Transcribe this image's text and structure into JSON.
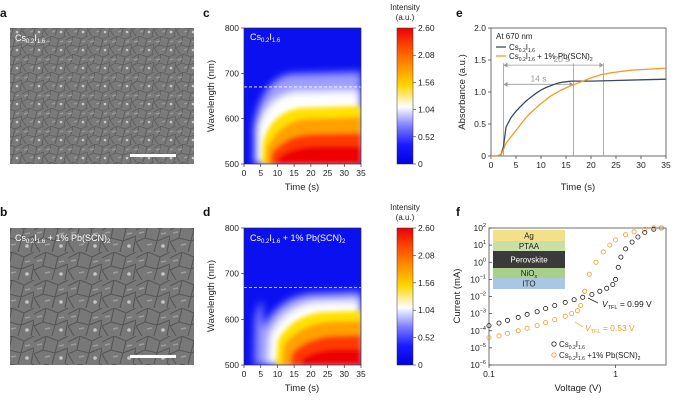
{
  "panel_labels": {
    "a": "a",
    "b": "b",
    "c": "c",
    "d": "d",
    "e": "e",
    "f": "f"
  },
  "sem_a": {
    "label_base": "Cs",
    "label_sub": "0.2",
    "label_mid": "I",
    "label_sub2": "1.6",
    "label_tail": ""
  },
  "sem_b": {
    "label_base": "Cs",
    "label_sub": "0.2",
    "label_mid": "I",
    "label_sub2": "1.6",
    "label_tail": " + 1% Pb(SCN)",
    "label_sub3": "2"
  },
  "colorbar": {
    "title1": "Intensity",
    "title2": "(a.u.)",
    "ticks": [
      "2.60",
      "2.08",
      "1.56",
      "1.04",
      "0.52",
      "0"
    ],
    "colors": [
      "#e8000b",
      "#ff4a00",
      "#ff9a00",
      "#ffd500",
      "#ffffff",
      "#7e7eff",
      "#1a1aff",
      "#0000e0"
    ]
  },
  "chart_data": [
    {
      "type": "heatmap",
      "panel": "c",
      "title_base": "Cs",
      "title_sub": "0.2",
      "title_mid": "I",
      "title_sub2": "1.6",
      "xlabel": "Time (s)",
      "ylabel": "Wavelength (nm)",
      "xlim": [
        0,
        35
      ],
      "ylim": [
        500,
        800
      ],
      "xticks": [
        "0",
        "5",
        "10",
        "15",
        "20",
        "25",
        "30",
        "35"
      ],
      "yticks": [
        "800",
        "700",
        "600",
        "500"
      ],
      "dashed_line_y": 670
    },
    {
      "type": "heatmap",
      "panel": "d",
      "title_base": "Cs",
      "title_sub": "0.2",
      "title_mid": "I",
      "title_sub2": "1.6",
      "title_tail": " + 1% Pb(SCN)",
      "title_sub3": "2",
      "xlabel": "Time (s)",
      "ylabel": "Wavelength (nm)",
      "xlim": [
        0,
        35
      ],
      "ylim": [
        500,
        800
      ],
      "xticks": [
        "0",
        "5",
        "10",
        "15",
        "20",
        "25",
        "30",
        "35"
      ],
      "yticks": [
        "800",
        "700",
        "600",
        "500"
      ],
      "dashed_line_y": 670
    },
    {
      "type": "line",
      "panel": "e",
      "annotation_title": "At 670 nm",
      "xlabel": "Time (s)",
      "ylabel": "Absorbance (a.u.)",
      "xlim": [
        0,
        35
      ],
      "ylim": [
        0,
        2.0
      ],
      "xticks": [
        "0",
        "5",
        "10",
        "15",
        "20",
        "25",
        "30",
        "35"
      ],
      "yticks": [
        "2.0",
        "1.5",
        "1.0",
        "0.5",
        "0"
      ],
      "interval_14": "14 s",
      "interval_20": "20 s",
      "series": [
        {
          "name_base": "Cs",
          "name_sub": "0.2",
          "name_mid": "I",
          "name_sub2": "1.6",
          "color": "#3b4a5c",
          "x": [
            0,
            1,
            2,
            2.5,
            3,
            4,
            5,
            6,
            7,
            8,
            9,
            10,
            11,
            12,
            13,
            14,
            15,
            16,
            17,
            20,
            25,
            30,
            35
          ],
          "y": [
            0.0,
            0.0,
            0.02,
            0.15,
            0.45,
            0.6,
            0.7,
            0.78,
            0.86,
            0.92,
            0.98,
            1.03,
            1.07,
            1.1,
            1.13,
            1.15,
            1.16,
            1.17,
            1.17,
            1.17,
            1.18,
            1.19,
            1.2
          ]
        },
        {
          "name_base": "Cs",
          "name_sub": "0.2",
          "name_mid": "I",
          "name_sub2": "1.6",
          "name_tail": " + 1% Pb(SCN)",
          "name_sub3": "2",
          "color": "#f39a2a",
          "x": [
            0,
            1,
            2,
            2.5,
            3,
            4,
            5,
            6,
            7,
            8,
            10,
            12,
            14,
            16,
            18,
            20,
            22,
            24,
            26,
            28,
            30,
            32,
            35
          ],
          "y": [
            0.0,
            0.0,
            0.02,
            0.1,
            0.2,
            0.3,
            0.4,
            0.5,
            0.6,
            0.68,
            0.82,
            0.94,
            1.03,
            1.1,
            1.16,
            1.22,
            1.27,
            1.3,
            1.32,
            1.34,
            1.35,
            1.36,
            1.37
          ]
        }
      ]
    },
    {
      "type": "scatter",
      "panel": "f",
      "xlabel": "Voltage (V)",
      "ylabel": "Current (mA)",
      "xscale": "log",
      "yscale": "log",
      "xlim": [
        0.1,
        2.5
      ],
      "ylim": [
        1e-06,
        100
      ],
      "xtick_labels": [
        "0.1",
        "1"
      ],
      "ytick_exps": [
        "2",
        "1",
        "0",
        "−1",
        "−2",
        "−3",
        "−4",
        "−5",
        "−6"
      ],
      "vtfl_1_label": "V",
      "vtfl_1_sub": "TFL",
      "vtfl_1_value": " = 0.99 V",
      "vtfl_2_label": "V",
      "vtfl_2_sub": "TFL",
      "vtfl_2_value": " = 0.53 V",
      "stack_layers": [
        "Ag",
        "PTAA",
        "Perovskite",
        "NiO",
        "ITO"
      ],
      "stack_nio_sub": "x",
      "series": [
        {
          "name_base": "Cs",
          "name_sub": "0.2",
          "name_mid": "I",
          "name_sub2": "1.6",
          "color": "#222222",
          "marker": "open-circle",
          "x": [
            0.1,
            0.12,
            0.14,
            0.17,
            0.2,
            0.24,
            0.28,
            0.33,
            0.4,
            0.47,
            0.55,
            0.65,
            0.75,
            0.85,
            0.95,
            1.0,
            1.05,
            1.1,
            1.2,
            1.35,
            1.5,
            1.7,
            2.0,
            2.3
          ],
          "y": [
            0.0002,
            0.00028,
            0.0004,
            0.0006,
            0.0009,
            0.0013,
            0.002,
            0.003,
            0.0045,
            0.0065,
            0.009,
            0.013,
            0.02,
            0.03,
            0.05,
            0.1,
            0.5,
            2.0,
            6.0,
            15.0,
            30.0,
            55.0,
            85.0,
            100.0
          ]
        },
        {
          "name_base": "Cs",
          "name_sub": "0.2",
          "name_mid": "I",
          "name_sub2": "1.6",
          "name_tail": " +1% Pb(SCN)",
          "name_sub3": "2",
          "color": "#f39a2a",
          "marker": "open-circle",
          "x": [
            0.1,
            0.12,
            0.14,
            0.17,
            0.2,
            0.24,
            0.28,
            0.33,
            0.4,
            0.45,
            0.5,
            0.53,
            0.57,
            0.62,
            0.7,
            0.8,
            0.9,
            1.0,
            1.2,
            1.4,
            1.7,
            2.0,
            2.3
          ],
          "y": [
            4e-05,
            5e-05,
            7e-05,
            0.0001,
            0.00014,
            0.0002,
            0.0003,
            0.00045,
            0.0007,
            0.001,
            0.0015,
            0.003,
            0.02,
            0.2,
            1.0,
            4.0,
            10.0,
            20.0,
            40.0,
            60.0,
            85.0,
            100.0,
            100.0
          ]
        }
      ]
    }
  ]
}
